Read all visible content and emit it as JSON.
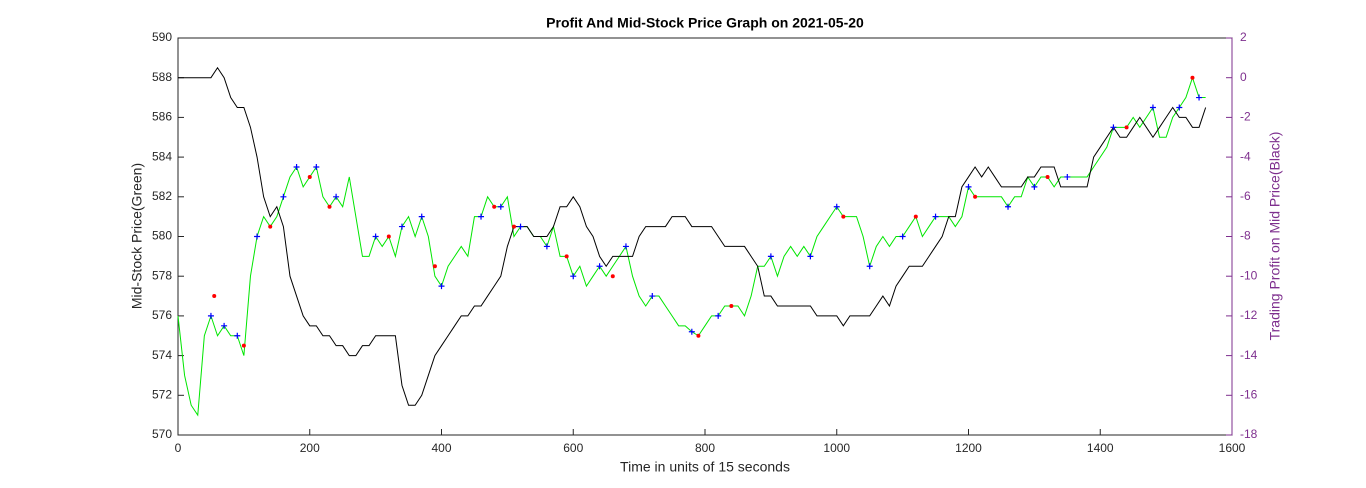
{
  "chart_data": {
    "type": "line",
    "title": "Profit And Mid-Stock Price Graph on 2021-05-20",
    "xlabel": "Time in units of 15 seconds",
    "ylabel": "Mid-Stock Price(Green)",
    "y2label": "Trading Profit on Mid Price(Black)",
    "xlim": [
      0,
      1600
    ],
    "xticks": [
      0,
      200,
      400,
      600,
      800,
      1000,
      1200,
      1400,
      1600
    ],
    "ylim": [
      570,
      590
    ],
    "yticks": [
      570,
      572,
      574,
      576,
      578,
      580,
      582,
      584,
      586,
      588,
      590
    ],
    "y2lim": [
      -18,
      2
    ],
    "y2ticks": [
      -18,
      -16,
      -14,
      -12,
      -10,
      -8,
      -6,
      -4,
      -2,
      0,
      2
    ],
    "y2color": "#7e2f8e",
    "x": [
      0,
      10,
      20,
      30,
      40,
      50,
      60,
      70,
      80,
      90,
      100,
      110,
      120,
      130,
      140,
      150,
      160,
      170,
      180,
      190,
      200,
      210,
      220,
      230,
      240,
      250,
      260,
      270,
      280,
      290,
      300,
      310,
      320,
      330,
      340,
      350,
      360,
      370,
      380,
      390,
      400,
      410,
      420,
      430,
      440,
      450,
      460,
      470,
      480,
      490,
      500,
      510,
      520,
      530,
      540,
      550,
      560,
      570,
      580,
      590,
      600,
      610,
      620,
      630,
      640,
      650,
      660,
      670,
      680,
      690,
      700,
      710,
      720,
      730,
      740,
      750,
      760,
      770,
      780,
      790,
      800,
      810,
      820,
      830,
      840,
      850,
      860,
      870,
      880,
      890,
      900,
      910,
      920,
      930,
      940,
      950,
      960,
      970,
      980,
      990,
      1000,
      1010,
      1020,
      1030,
      1040,
      1050,
      1060,
      1070,
      1080,
      1090,
      1100,
      1110,
      1120,
      1130,
      1140,
      1150,
      1160,
      1170,
      1180,
      1190,
      1200,
      1210,
      1220,
      1230,
      1240,
      1250,
      1260,
      1270,
      1280,
      1290,
      1300,
      1310,
      1320,
      1330,
      1340,
      1350,
      1360,
      1370,
      1380,
      1390,
      1400,
      1410,
      1420,
      1430,
      1440,
      1450,
      1460,
      1470,
      1480,
      1490,
      1500,
      1510,
      1520,
      1530,
      1540,
      1550,
      1560
    ],
    "series": [
      {
        "color": "#00e600",
        "values": [
          576,
          573,
          571.5,
          571,
          575,
          576,
          575,
          575.5,
          575,
          575,
          574,
          578,
          580,
          581,
          580.5,
          581,
          582,
          583,
          583.5,
          582.5,
          583,
          583.5,
          582,
          581.5,
          582,
          581.5,
          583,
          581,
          579,
          579,
          580,
          579.5,
          580,
          579,
          580.5,
          581,
          580,
          581,
          580,
          578,
          577.5,
          578.5,
          579,
          579.5,
          579,
          581,
          581,
          582,
          581.5,
          581.5,
          582,
          580,
          580.5,
          580.5,
          580,
          580,
          579.5,
          580.5,
          579,
          579,
          578,
          578.5,
          577.5,
          578,
          578.5,
          578,
          578.5,
          579,
          579.5,
          578,
          577,
          576.5,
          577,
          577,
          576.5,
          576,
          575.5,
          575.5,
          575.2,
          575,
          575.5,
          576,
          576,
          576.5,
          576.5,
          576.5,
          576,
          577,
          578.5,
          578.5,
          579,
          578,
          579,
          579.5,
          579,
          579.5,
          579,
          580,
          580.5,
          581,
          581.5,
          581,
          581,
          581,
          580,
          578.5,
          579.5,
          580,
          579.5,
          580,
          580,
          580.5,
          581,
          580,
          580.5,
          581,
          581,
          581,
          580.5,
          581,
          582.5,
          582,
          582,
          582,
          582,
          582,
          581.5,
          582,
          582,
          583,
          582.5,
          583,
          583,
          582.5,
          583,
          583,
          583,
          583,
          583,
          583.5,
          584,
          584.5,
          585.5,
          585.5,
          585.5,
          586,
          585.5,
          586,
          586.5,
          585,
          585,
          586,
          586.5,
          587,
          588,
          587,
          587
        ]
      },
      {
        "color": "#000000",
        "axis": "y2",
        "values": [
          0,
          0,
          0,
          0,
          0,
          0,
          0.5,
          0,
          -1,
          -1.5,
          -1.5,
          -2.5,
          -4,
          -6,
          -7,
          -6.5,
          -7.5,
          -10,
          -11,
          -12,
          -12.5,
          -12.5,
          -13,
          -13,
          -13.5,
          -13.5,
          -14,
          -14,
          -13.5,
          -13.5,
          -13,
          -13,
          -13,
          -13,
          -15.5,
          -16.5,
          -16.5,
          -16,
          -15,
          -14,
          -13.5,
          -13,
          -12.5,
          -12,
          -12,
          -11.5,
          -11.5,
          -11,
          -10.5,
          -10,
          -8.5,
          -7.5,
          -7.5,
          -7.5,
          -8,
          -8,
          -8,
          -7.5,
          -6.5,
          -6.5,
          -6,
          -6.5,
          -7.5,
          -8,
          -9,
          -9.5,
          -9,
          -9,
          -9,
          -9,
          -8,
          -7.5,
          -7.5,
          -7.5,
          -7.5,
          -7,
          -7,
          -7,
          -7.5,
          -7.5,
          -7.5,
          -7.5,
          -8,
          -8.5,
          -8.5,
          -8.5,
          -8.5,
          -9,
          -9.5,
          -11,
          -11,
          -11.5,
          -11.5,
          -11.5,
          -11.5,
          -11.5,
          -11.5,
          -12,
          -12,
          -12,
          -12,
          -12.5,
          -12,
          -12,
          -12,
          -12,
          -11.5,
          -11,
          -11.5,
          -10.5,
          -10,
          -9.5,
          -9.5,
          -9.5,
          -9,
          -8.5,
          -8,
          -7,
          -7,
          -5.5,
          -5,
          -4.5,
          -5,
          -4.5,
          -5,
          -5.5,
          -5.5,
          -5.5,
          -5.5,
          -5,
          -5,
          -4.5,
          -4.5,
          -4.5,
          -5.5,
          -5.5,
          -5.5,
          -5.5,
          -5.5,
          -4,
          -3.5,
          -3,
          -2.5,
          -3,
          -3,
          -2.5,
          -2,
          -2.5,
          -3,
          -2.5,
          -2,
          -1.5,
          -2,
          -2,
          -2.5,
          -2.5,
          -1.5
        ]
      },
      {
        "color": "#0000ff",
        "marker": "+",
        "x": [
          50,
          70,
          90,
          120,
          160,
          180,
          210,
          240,
          300,
          340,
          370,
          400,
          460,
          490,
          520,
          560,
          600,
          640,
          680,
          720,
          780,
          820,
          900,
          960,
          1000,
          1050,
          1100,
          1150,
          1200,
          1260,
          1300,
          1350,
          1420,
          1480,
          1520,
          1550
        ],
        "values": [
          576,
          575.5,
          575,
          580,
          582,
          583.5,
          583.5,
          582,
          580,
          580.5,
          581,
          577.5,
          581,
          581.5,
          580.5,
          579.5,
          578,
          578.5,
          579.5,
          577,
          575.2,
          576,
          579,
          579,
          581.5,
          578.5,
          580,
          581,
          582.5,
          581.5,
          582.5,
          583,
          585.5,
          586.5,
          586.5,
          587
        ]
      },
      {
        "color": "#ff0000",
        "marker": "o",
        "x": [
          55,
          100,
          140,
          200,
          230,
          320,
          390,
          480,
          510,
          590,
          660,
          790,
          840,
          1010,
          1120,
          1210,
          1320,
          1440,
          1540
        ],
        "values": [
          577,
          574.5,
          580.5,
          583,
          581.5,
          580,
          578.5,
          581.5,
          580.5,
          579,
          578,
          575,
          576.5,
          581,
          581,
          582,
          583,
          585.5,
          588
        ]
      }
    ]
  }
}
